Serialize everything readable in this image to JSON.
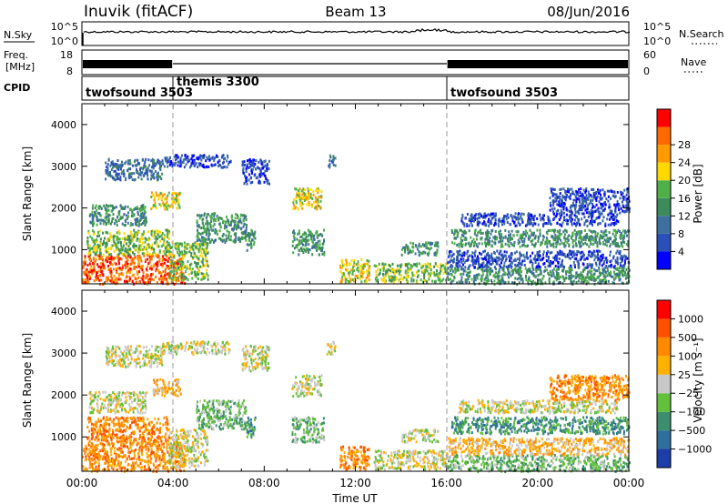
{
  "header": {
    "station": "Inuvik (fitACF)",
    "beam": "Beam 13",
    "date": "08/Jun/2016"
  },
  "status_panels": {
    "nsky_label": "N.Sky",
    "nsky_ticks": [
      "10^5",
      "10^0"
    ],
    "nsearch_label": "N.Search",
    "nsearch_ticks": [
      "10^5",
      "10^0"
    ],
    "freq_label_1": "Freq.",
    "freq_label_2": "[MHz]",
    "freq_ticks": [
      "18",
      "8"
    ],
    "nave_label": "Nave",
    "nave_ticks": [
      "60",
      "0"
    ],
    "cpid_label": "CPID",
    "cpid_segments": [
      {
        "name": "twofsound 3503",
        "start_hour": 0,
        "end_hour": 4
      },
      {
        "name": "themis 3300",
        "start_hour": 4,
        "end_hour": 16
      },
      {
        "name": "twofsound 3503",
        "start_hour": 16,
        "end_hour": 24
      }
    ]
  },
  "chart_data": [
    {
      "type": "heatmap",
      "name": "power",
      "ylabel": "Slant Range [km]",
      "yticks": [
        1000,
        2000,
        3000,
        4000
      ],
      "ylim": [
        180,
        4500
      ],
      "xlim_hours": [
        0,
        24
      ],
      "colorbar_label": "Power [dB]",
      "colorbar_ticks": [
        "4",
        "8",
        "12",
        "16",
        "20",
        "24",
        "28"
      ],
      "colorbar_colors": [
        "#0000ff",
        "#2a4fb8",
        "#3d6f9f",
        "#3d8a5a",
        "#4fb04a",
        "#ffd800",
        "#ff9a00",
        "#ff6a00",
        "#ff0000"
      ],
      "echo_bands": [
        {
          "t0": 0.0,
          "t1": 4.5,
          "r0": 200,
          "r1": 900,
          "level": 7
        },
        {
          "t0": 0.2,
          "t1": 3.8,
          "r0": 900,
          "r1": 1500,
          "level": 4
        },
        {
          "t0": 0.3,
          "t1": 2.8,
          "r0": 1600,
          "r1": 2100,
          "level": 3
        },
        {
          "t0": 1.0,
          "t1": 3.5,
          "r0": 2700,
          "r1": 3200,
          "level": 2
        },
        {
          "t0": 3.5,
          "t1": 6.5,
          "r0": 3000,
          "r1": 3300,
          "level": 1
        },
        {
          "t0": 3.0,
          "t1": 4.3,
          "r0": 2000,
          "r1": 2400,
          "level": 5
        },
        {
          "t0": 3.8,
          "t1": 5.5,
          "r0": 300,
          "r1": 1200,
          "level": 4
        },
        {
          "t0": 5.0,
          "t1": 7.2,
          "r0": 1200,
          "r1": 1900,
          "level": 3
        },
        {
          "t0": 7.0,
          "t1": 8.2,
          "r0": 2600,
          "r1": 3200,
          "level": 1
        },
        {
          "t0": 7.2,
          "t1": 7.6,
          "r0": 1000,
          "r1": 1500,
          "level": 3
        },
        {
          "t0": 9.2,
          "t1": 10.5,
          "r0": 2000,
          "r1": 2500,
          "level": 5
        },
        {
          "t0": 9.2,
          "t1": 10.6,
          "r0": 900,
          "r1": 1500,
          "level": 3
        },
        {
          "t0": 10.7,
          "t1": 11.1,
          "r0": 3000,
          "r1": 3300,
          "level": 2
        },
        {
          "t0": 11.3,
          "t1": 12.6,
          "r0": 250,
          "r1": 800,
          "level": 5
        },
        {
          "t0": 12.8,
          "t1": 16.0,
          "r0": 250,
          "r1": 700,
          "level": 4
        },
        {
          "t0": 14.0,
          "t1": 15.6,
          "r0": 900,
          "r1": 1200,
          "level": 3
        },
        {
          "t0": 16.0,
          "t1": 24.0,
          "r0": 200,
          "r1": 600,
          "level": 3
        },
        {
          "t0": 16.0,
          "t1": 24.0,
          "r0": 600,
          "r1": 1000,
          "level": 1
        },
        {
          "t0": 16.2,
          "t1": 24.0,
          "r0": 1100,
          "r1": 1500,
          "level": 3
        },
        {
          "t0": 16.5,
          "t1": 23.5,
          "r0": 1600,
          "r1": 1900,
          "level": 1
        },
        {
          "t0": 20.5,
          "t1": 24.0,
          "r0": 1900,
          "r1": 2500,
          "level": 1
        }
      ]
    },
    {
      "type": "heatmap",
      "name": "velocity",
      "xlabel": "Time UT",
      "xticks": [
        "00:00",
        "04:00",
        "08:00",
        "12:00",
        "16:00",
        "20:00",
        "00:00"
      ],
      "ylabel": "Slant Range [km]",
      "yticks": [
        1000,
        2000,
        3000,
        4000
      ],
      "ylim": [
        180,
        4500
      ],
      "xlim_hours": [
        0,
        24
      ],
      "colorbar_label": "Velocity [m s⁻¹]",
      "colorbar_ticks": [
        "1000",
        "500",
        "100",
        "25",
        "−25",
        "−100",
        "−500",
        "−1000"
      ],
      "colorbar_colors": [
        "#1d3ea8",
        "#2e6f9c",
        "#3b8f6e",
        "#62c03b",
        "#c8c8c8",
        "#ffb000",
        "#ff8a00",
        "#ff5000",
        "#ff0000"
      ],
      "echo_bands": [
        {
          "t0": 0.0,
          "t1": 4.5,
          "r0": 200,
          "r1": 900,
          "level": 6
        },
        {
          "t0": 0.2,
          "t1": 3.8,
          "r0": 900,
          "r1": 1500,
          "level": 6
        },
        {
          "t0": 0.3,
          "t1": 2.8,
          "r0": 1600,
          "r1": 2100,
          "level": 4
        },
        {
          "t0": 1.0,
          "t1": 3.5,
          "r0": 2700,
          "r1": 3200,
          "level": 4
        },
        {
          "t0": 3.5,
          "t1": 6.5,
          "r0": 3000,
          "r1": 3300,
          "level": 4
        },
        {
          "t0": 3.0,
          "t1": 4.3,
          "r0": 2000,
          "r1": 2400,
          "level": 5
        },
        {
          "t0": 3.8,
          "t1": 5.5,
          "r0": 300,
          "r1": 1200,
          "level": 4
        },
        {
          "t0": 5.0,
          "t1": 7.2,
          "r0": 1200,
          "r1": 1900,
          "level": 3
        },
        {
          "t0": 7.0,
          "t1": 8.2,
          "r0": 2600,
          "r1": 3200,
          "level": 4
        },
        {
          "t0": 7.2,
          "t1": 7.6,
          "r0": 1000,
          "r1": 1500,
          "level": 2
        },
        {
          "t0": 9.2,
          "t1": 10.5,
          "r0": 2000,
          "r1": 2500,
          "level": 4
        },
        {
          "t0": 9.2,
          "t1": 10.6,
          "r0": 900,
          "r1": 1500,
          "level": 3
        },
        {
          "t0": 10.7,
          "t1": 11.1,
          "r0": 3000,
          "r1": 3300,
          "level": 4
        },
        {
          "t0": 11.3,
          "t1": 12.6,
          "r0": 250,
          "r1": 800,
          "level": 6
        },
        {
          "t0": 12.8,
          "t1": 16.0,
          "r0": 250,
          "r1": 700,
          "level": 4
        },
        {
          "t0": 14.0,
          "t1": 15.6,
          "r0": 900,
          "r1": 1200,
          "level": 4
        },
        {
          "t0": 16.0,
          "t1": 24.0,
          "r0": 200,
          "r1": 600,
          "level": 3
        },
        {
          "t0": 16.0,
          "t1": 24.0,
          "r0": 600,
          "r1": 1000,
          "level": 5
        },
        {
          "t0": 16.2,
          "t1": 24.0,
          "r0": 1100,
          "r1": 1500,
          "level": 2
        },
        {
          "t0": 16.5,
          "t1": 23.5,
          "r0": 1600,
          "r1": 1900,
          "level": 4
        },
        {
          "t0": 20.5,
          "t1": 24.0,
          "r0": 1900,
          "r1": 2500,
          "level": 6
        }
      ]
    }
  ]
}
